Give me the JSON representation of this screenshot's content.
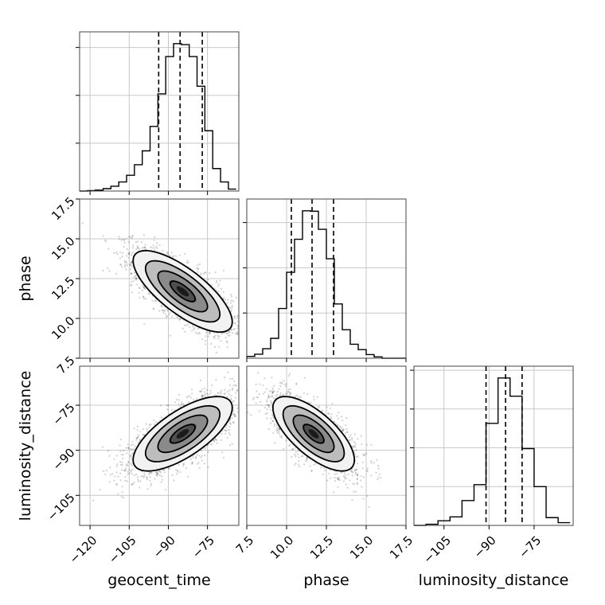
{
  "chart_data": {
    "type": "corner",
    "parameters": [
      "geocent_time",
      "phase",
      "luminosity_distance"
    ],
    "axis_labels": {
      "x": [
        "geocent_time",
        "phase",
        "luminosity_distance"
      ],
      "y": [
        "",
        "phase",
        "luminosity_distance"
      ]
    },
    "ranges": {
      "geocent_time": [
        -124,
        -63
      ],
      "phase": [
        7.5,
        17.5
      ],
      "luminosity_distance": [
        -115,
        -62
      ]
    },
    "ticks": {
      "geocent_time": {
        "values": [
          -120,
          -105,
          -90,
          -75
        ],
        "labels": [
          "−120",
          "−105",
          "−90",
          "−75"
        ]
      },
      "phase": {
        "values": [
          7.5,
          10.0,
          12.5,
          15.0,
          17.5
        ],
        "labels": [
          "7.5",
          "10.0",
          "12.5",
          "15.0",
          "17.5"
        ]
      },
      "luminosity_distance": {
        "values": [
          -105,
          -90,
          -75
        ],
        "labels": [
          "−105",
          "−90",
          "−75"
        ]
      }
    },
    "grid": true,
    "histograms": [
      {
        "parameter": "geocent_time",
        "bin_edges": [
          -124,
          -121,
          -118,
          -115,
          -112,
          -109,
          -106,
          -103,
          -100,
          -97,
          -94,
          -91,
          -88,
          -85,
          -82,
          -79,
          -76,
          -73,
          -70,
          -67,
          -64
        ],
        "counts": [
          0,
          1,
          2,
          5,
          10,
          19,
          33,
          55,
          84,
          135,
          203,
          281,
          308,
          306,
          281,
          219,
          126,
          47,
          19,
          4
        ],
        "quantiles": [
          -93.7,
          -85.5,
          -77.0
        ]
      },
      {
        "parameter": "phase",
        "bin_edges": [
          7.5,
          8.0,
          8.5,
          9.0,
          9.5,
          10.0,
          10.5,
          11.0,
          11.5,
          12.0,
          12.5,
          13.0,
          13.5,
          14.0,
          14.5,
          15.0,
          15.5,
          16.0,
          16.5,
          17.0,
          17.5
        ],
        "counts": [
          4,
          9,
          21,
          44,
          110,
          190,
          263,
          326,
          325,
          285,
          220,
          120,
          63,
          31,
          19,
          8,
          3,
          0,
          0,
          0
        ],
        "quantiles": [
          10.3,
          11.6,
          12.95
        ]
      },
      {
        "parameter": "luminosity_distance",
        "bin_edges": [
          -115,
          -111,
          -107,
          -103,
          -99,
          -95,
          -91,
          -87,
          -83,
          -79,
          -75,
          -71,
          -67,
          -63
        ],
        "counts": [
          0,
          3,
          12,
          22,
          64,
          105,
          263,
          380,
          333,
          198,
          100,
          20,
          7
        ],
        "quantiles": [
          -91.0,
          -84.5,
          -79.0
        ]
      }
    ],
    "correlations": [
      {
        "x": "geocent_time",
        "y": "phase",
        "mean": [
          -84.5,
          11.7
        ],
        "std": [
          9.5,
          1.28
        ],
        "rho": -0.75
      },
      {
        "x": "geocent_time",
        "y": "luminosity_distance",
        "mean": [
          -84.5,
          -84.5
        ],
        "std": [
          9.5,
          6.2
        ],
        "rho": 0.7
      },
      {
        "x": "phase",
        "y": "luminosity_distance",
        "mean": [
          11.7,
          -84.5
        ],
        "std": [
          1.28,
          6.2
        ],
        "rho": -0.7
      }
    ]
  }
}
